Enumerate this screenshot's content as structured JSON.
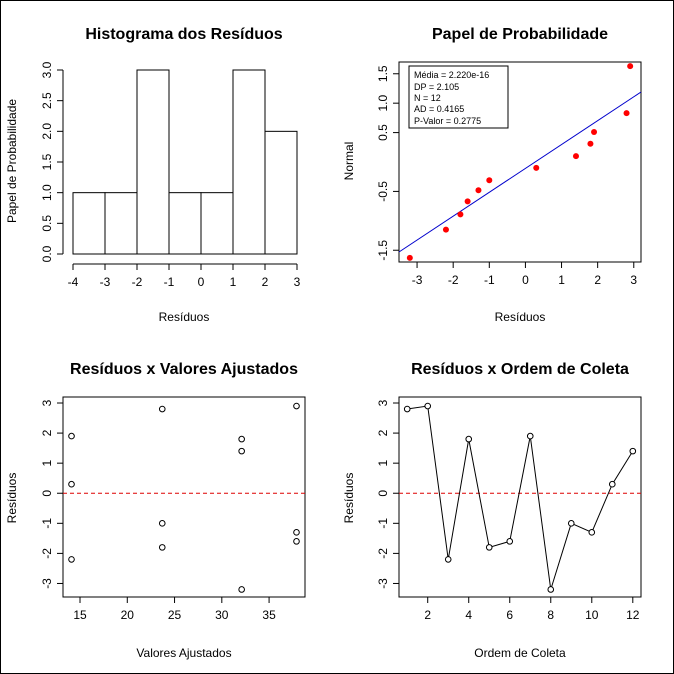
{
  "chart_data": [
    {
      "type": "bar",
      "title": "Histograma dos Resíduos",
      "xlabel": "Resíduos",
      "ylabel": "Papel de Probabilidade",
      "bins": [
        {
          "from": -4,
          "to": -3,
          "count": 1
        },
        {
          "from": -3,
          "to": -2,
          "count": 1
        },
        {
          "from": -2,
          "to": -1,
          "count": 3
        },
        {
          "from": -1,
          "to": 0,
          "count": 1
        },
        {
          "from": 0,
          "to": 1,
          "count": 1
        },
        {
          "from": 1,
          "to": 2,
          "count": 3
        },
        {
          "from": 2,
          "to": 3,
          "count": 2
        }
      ],
      "xlim": [
        -4,
        3
      ],
      "ylim": [
        0,
        3
      ],
      "xticks": [
        "-4",
        "-3",
        "-2",
        "-1",
        "0",
        "1",
        "2",
        "3"
      ],
      "yticks": [
        "0.0",
        "0.5",
        "1.0",
        "1.5",
        "2.0",
        "2.5",
        "3.0"
      ]
    },
    {
      "type": "scatter",
      "title": "Papel de Probabilidade",
      "xlabel": "Resíduos",
      "ylabel": "Normal",
      "points": [
        {
          "x": -3.2,
          "y": -1.63
        },
        {
          "x": -2.2,
          "y": -1.15
        },
        {
          "x": -1.8,
          "y": -0.89
        },
        {
          "x": -1.6,
          "y": -0.67
        },
        {
          "x": -1.3,
          "y": -0.48
        },
        {
          "x": -1.0,
          "y": -0.31
        },
        {
          "x": 0.3,
          "y": -0.1
        },
        {
          "x": 1.4,
          "y": 0.1
        },
        {
          "x": 1.8,
          "y": 0.31
        },
        {
          "x": 1.9,
          "y": 0.51
        },
        {
          "x": 2.8,
          "y": 0.83
        },
        {
          "x": 2.9,
          "y": 1.63
        }
      ],
      "fit_line": {
        "x": [
          -3.5,
          3.2
        ],
        "y": [
          -1.53,
          1.19
        ]
      },
      "xlim": [
        -3.5,
        3.2
      ],
      "ylim": [
        -1.7,
        1.7
      ],
      "xticks": [
        "-3",
        "-2",
        "-1",
        "0",
        "1",
        "2",
        "3"
      ],
      "yticks": [
        "-1.5",
        "-0.5",
        "0.5",
        "1.0",
        "1.5"
      ],
      "stats": [
        "Média = 2.220e-16",
        "DP = 2.105",
        "N = 12",
        "AD = 0.4165",
        "P-Valor = 0.2775"
      ],
      "point_color": "#ff0000",
      "line_color": "#0000cc"
    },
    {
      "type": "scatter",
      "title": "Resíduos x Valores Ajustados",
      "xlabel": "Valores Ajustados",
      "ylabel": "Resíduos",
      "points": [
        {
          "x": 14.1,
          "y": 1.9
        },
        {
          "x": 14.1,
          "y": 0.3
        },
        {
          "x": 14.1,
          "y": -2.2
        },
        {
          "x": 23.7,
          "y": 2.8
        },
        {
          "x": 23.7,
          "y": -1.0
        },
        {
          "x": 23.7,
          "y": -1.8
        },
        {
          "x": 32.1,
          "y": 1.8
        },
        {
          "x": 32.1,
          "y": 1.4
        },
        {
          "x": 32.1,
          "y": -3.2
        },
        {
          "x": 37.9,
          "y": 2.9
        },
        {
          "x": 37.9,
          "y": -1.3
        },
        {
          "x": 37.9,
          "y": -1.6
        }
      ],
      "ref_line_y": 0,
      "xlim": [
        13.2,
        38.8
      ],
      "ylim": [
        -3.45,
        3.2
      ],
      "xticks": [
        "15",
        "20",
        "25",
        "30",
        "35"
      ],
      "yticks": [
        "-3",
        "-2",
        "-1",
        "0",
        "1",
        "2",
        "3"
      ],
      "ref_line_color": "#dd0000"
    },
    {
      "type": "line",
      "title": "Resíduos x Ordem de Coleta",
      "xlabel": "Ordem de Coleta",
      "ylabel": "Resíduos",
      "x": [
        1,
        2,
        3,
        4,
        5,
        6,
        7,
        8,
        9,
        10,
        11,
        12
      ],
      "y": [
        2.8,
        2.9,
        -2.2,
        1.8,
        -1.8,
        -1.6,
        1.9,
        -3.2,
        -1.0,
        -1.3,
        0.3,
        1.4
      ],
      "ref_line_y": 0,
      "xlim": [
        0.6,
        12.4
      ],
      "ylim": [
        -3.45,
        3.2
      ],
      "xticks": [
        "2",
        "4",
        "6",
        "8",
        "10",
        "12"
      ],
      "yticks": [
        "-3",
        "-2",
        "-1",
        "0",
        "1",
        "2",
        "3"
      ],
      "ref_line_color": "#dd0000"
    }
  ]
}
